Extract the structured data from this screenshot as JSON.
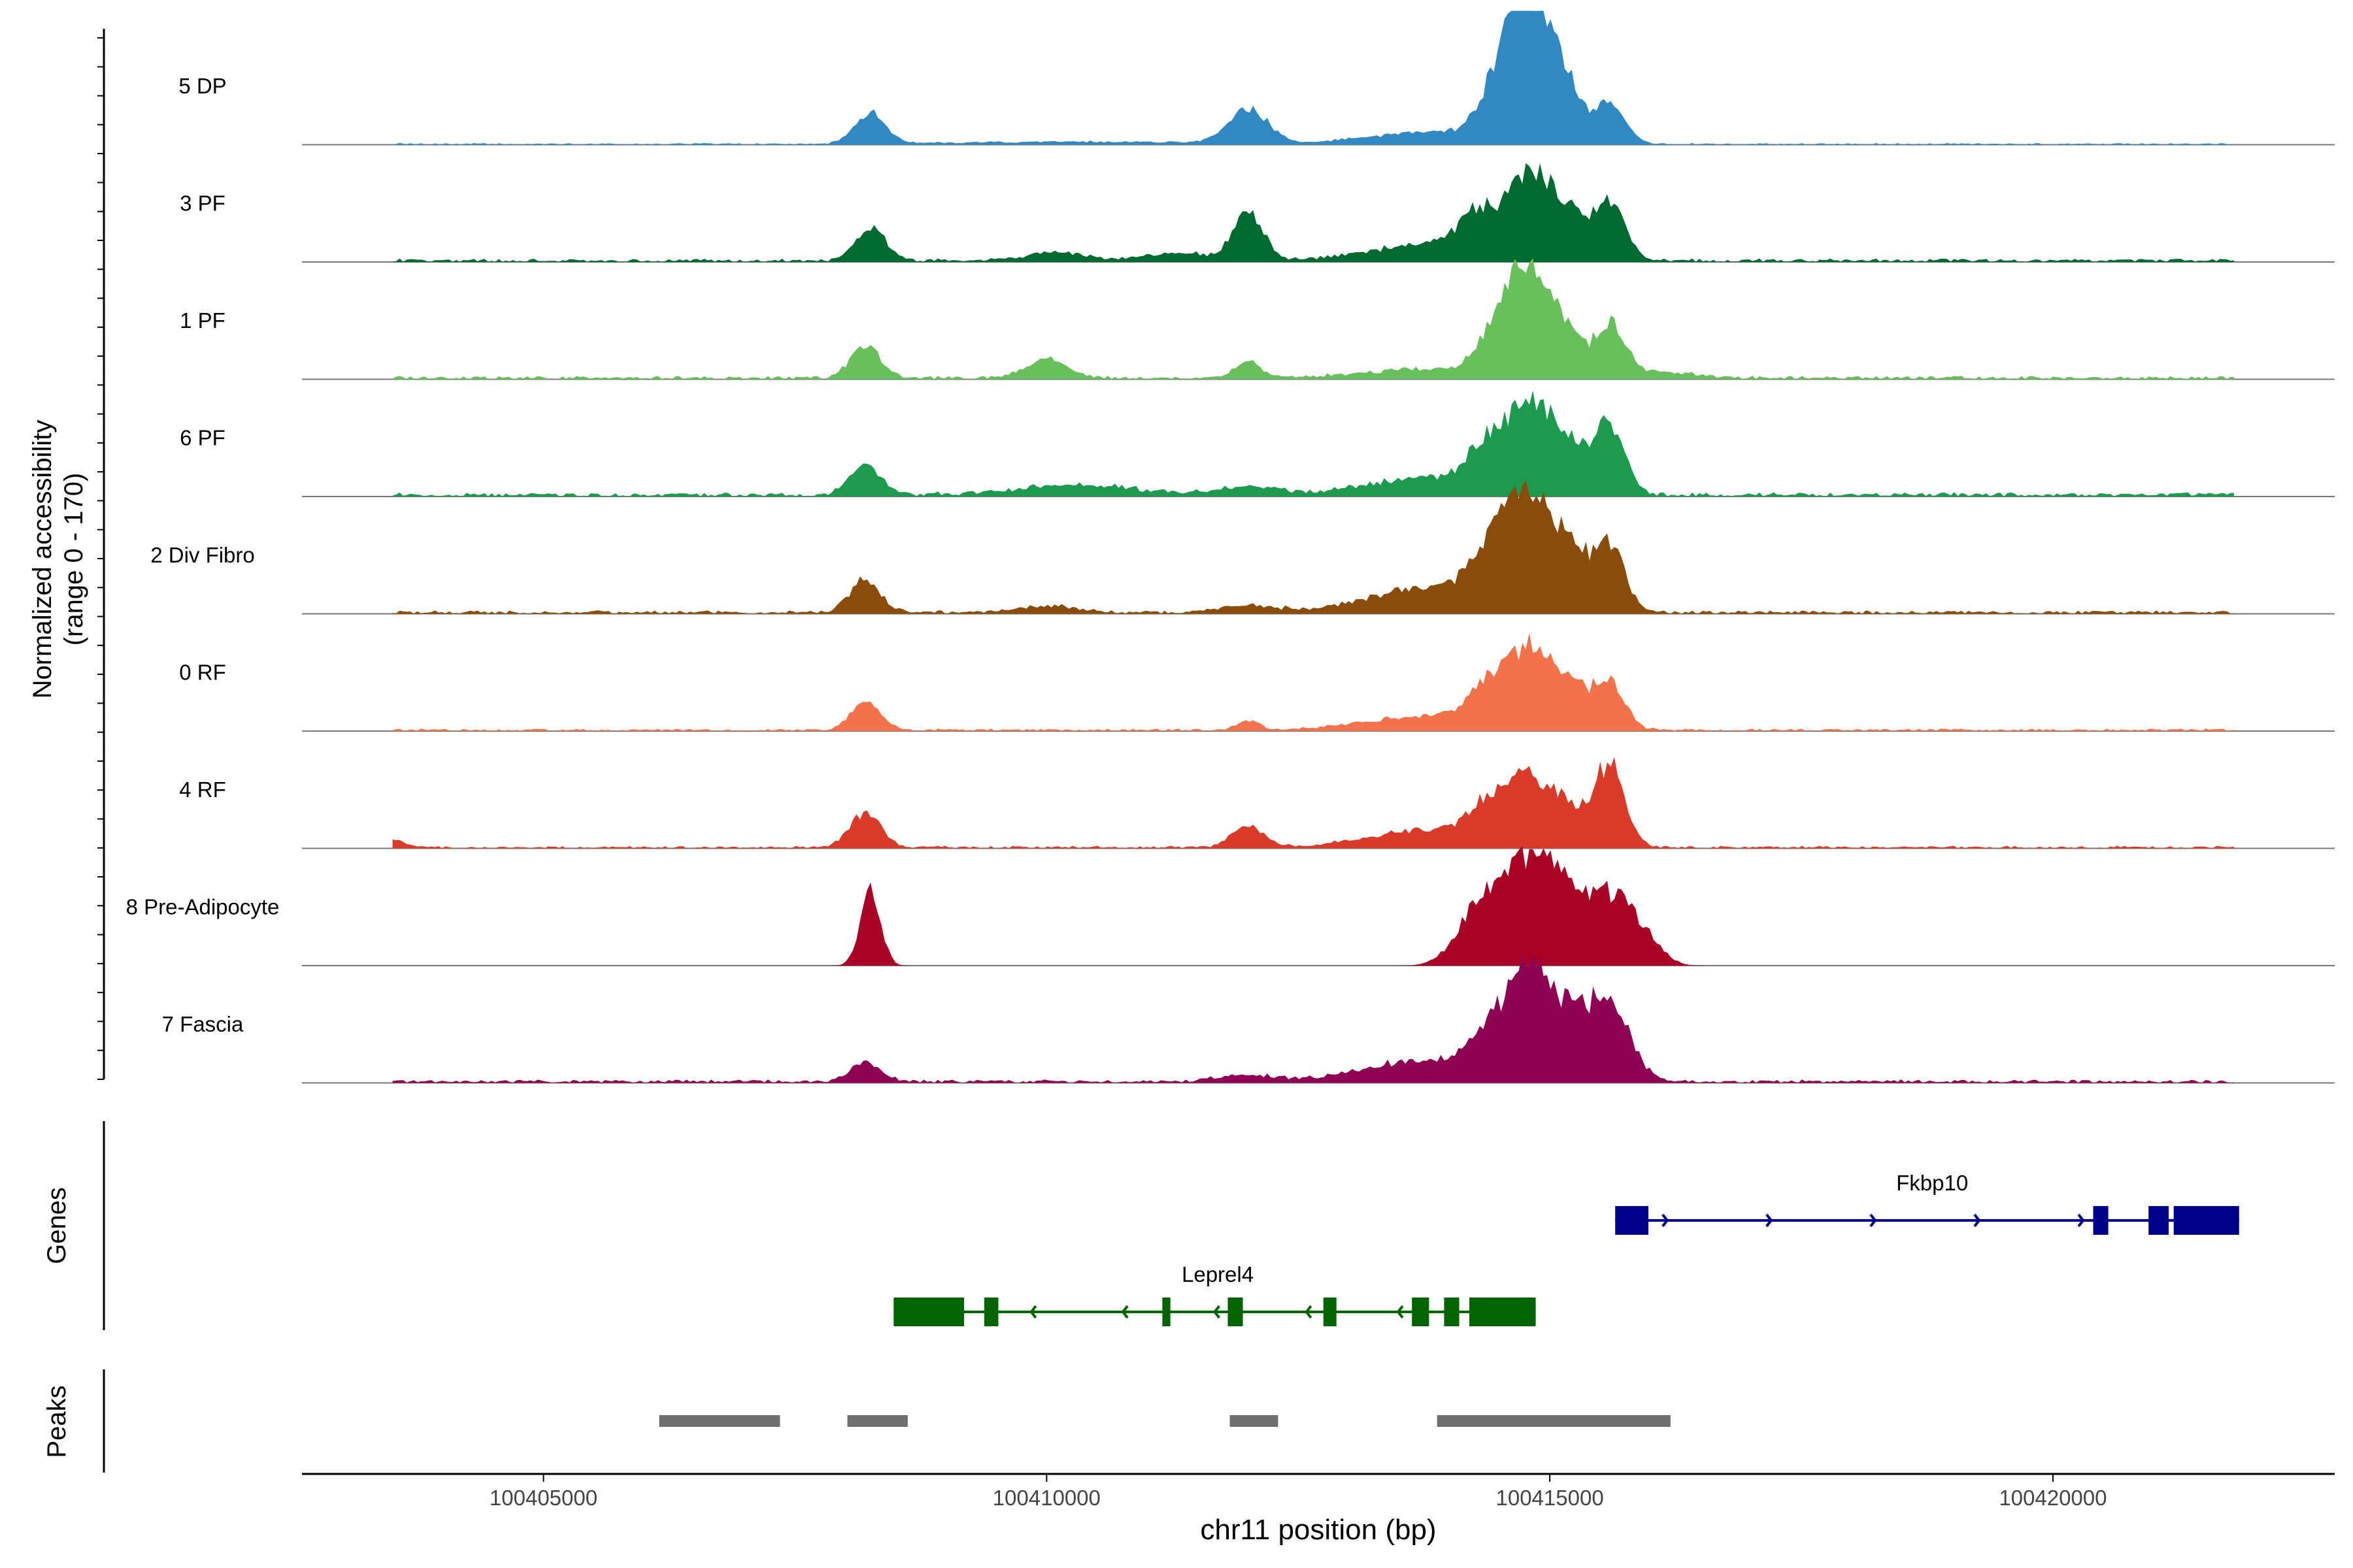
{
  "chart_data": {
    "type": "area",
    "chromosome": "chr11",
    "xlabel": "chr11 position (bp)",
    "xlim": [
      100402600,
      100422800
    ],
    "xticks": [
      100405000,
      100410000,
      100415000,
      100420000
    ],
    "xtick_labels": [
      "100405000",
      "100410000",
      "100415000",
      "100420000"
    ],
    "ylabel_line1": "Normalized accessibility",
    "ylabel_line2": "(range 0 - 170)",
    "ylim": [
      0,
      170
    ],
    "coverage_tracks": [
      {
        "name": "5 DP",
        "color": "#3288c3",
        "background": 2,
        "peaks": [
          [
            100408250,
            40,
            150
          ],
          [
            100412000,
            42,
            200
          ],
          [
            100414500,
            65,
            200
          ],
          [
            100414800,
            150,
            200
          ],
          [
            100415100,
            75,
            200
          ],
          [
            100415600,
            50,
            150
          ],
          [
            100413800,
            15,
            600
          ],
          [
            100410500,
            3,
            1200
          ]
        ]
      },
      {
        "name": "3 PF",
        "color": "#006a31",
        "background": 4,
        "peaks": [
          [
            100408250,
            42,
            150
          ],
          [
            100412000,
            60,
            150
          ],
          [
            100414300,
            50,
            200
          ],
          [
            100414800,
            100,
            200
          ],
          [
            100415200,
            55,
            200
          ],
          [
            100415600,
            68,
            150
          ],
          [
            100413800,
            20,
            600
          ],
          [
            100410100,
            10,
            300
          ],
          [
            100411300,
            10,
            300
          ]
        ]
      },
      {
        "name": "1 PF",
        "color": "#6abf5d",
        "background": 4,
        "peaks": [
          [
            100408200,
            40,
            150
          ],
          [
            100410000,
            25,
            200
          ],
          [
            100412000,
            20,
            120
          ],
          [
            100414500,
            55,
            200
          ],
          [
            100414800,
            110,
            200
          ],
          [
            100415100,
            50,
            200
          ],
          [
            100415600,
            65,
            150
          ],
          [
            100413800,
            12,
            600
          ],
          [
            100416000,
            8,
            400
          ]
        ]
      },
      {
        "name": "6 PF",
        "color": "#1b9a50",
        "background": 5,
        "peaks": [
          [
            100408200,
            40,
            150
          ],
          [
            100414400,
            55,
            200
          ],
          [
            100414800,
            98,
            200
          ],
          [
            100415200,
            60,
            200
          ],
          [
            100415600,
            85,
            150
          ],
          [
            100413800,
            22,
            600
          ],
          [
            100410300,
            12,
            600
          ],
          [
            100412000,
            10,
            300
          ]
        ]
      },
      {
        "name": "2 Div Fibro",
        "color": "#8a4c0a",
        "background": 4,
        "peaks": [
          [
            100408200,
            42,
            150
          ],
          [
            100414400,
            65,
            200
          ],
          [
            100414800,
            140,
            200
          ],
          [
            100415200,
            72,
            200
          ],
          [
            100415600,
            80,
            150
          ],
          [
            100413800,
            30,
            600
          ],
          [
            100410000,
            8,
            300
          ],
          [
            100412000,
            8,
            300
          ]
        ]
      },
      {
        "name": "0 RF",
        "color": "#f2734b",
        "background": 3,
        "peaks": [
          [
            100408200,
            35,
            150
          ],
          [
            100412000,
            12,
            100
          ],
          [
            100414400,
            50,
            200
          ],
          [
            100414800,
            90,
            200
          ],
          [
            100415200,
            50,
            200
          ],
          [
            100415600,
            58,
            150
          ],
          [
            100413800,
            18,
            600
          ]
        ]
      },
      {
        "name": "4 RF",
        "color": "#d93b2b",
        "background": 3,
        "peaks": [
          [
            100408200,
            45,
            150
          ],
          [
            100412000,
            28,
            150
          ],
          [
            100414400,
            45,
            200
          ],
          [
            100414800,
            75,
            200
          ],
          [
            100415200,
            45,
            200
          ],
          [
            100415600,
            100,
            150
          ],
          [
            100413800,
            22,
            600
          ],
          [
            100403500,
            10,
            100
          ]
        ]
      },
      {
        "name": "8 Pre-Adipocyte",
        "color": "#a90325",
        "background": 0,
        "peaks": [
          [
            100408250,
            95,
            100
          ],
          [
            100414500,
            80,
            250
          ],
          [
            100414900,
            100,
            250
          ],
          [
            100415400,
            70,
            300
          ],
          [
            100415700,
            40,
            200
          ],
          [
            100414200,
            30,
            200
          ],
          [
            100416000,
            20,
            150
          ]
        ]
      },
      {
        "name": "7 Fascia",
        "color": "#8e0153",
        "background": 4,
        "peaks": [
          [
            100408200,
            25,
            150
          ],
          [
            100414400,
            50,
            200
          ],
          [
            100414800,
            125,
            200
          ],
          [
            100415200,
            70,
            200
          ],
          [
            100415600,
            95,
            200
          ],
          [
            100413800,
            28,
            600
          ],
          [
            100412000,
            8,
            300
          ]
        ]
      }
    ],
    "genes_label": "Genes",
    "genes": [
      {
        "name": "Fkbp10",
        "color": "#00008b",
        "strand": "+",
        "start": 100415650,
        "end": 100421850,
        "exons": [
          [
            100415650,
            100415980
          ],
          [
            100420400,
            100420550
          ],
          [
            100420950,
            100421150
          ],
          [
            100421200,
            100421850
          ]
        ]
      },
      {
        "name": "Leprel4",
        "color": "#006400",
        "strand": "-",
        "start": 100408480,
        "end": 100414860,
        "exons": [
          [
            100408480,
            100409180
          ],
          [
            100409380,
            100409520
          ],
          [
            100411150,
            100411230
          ],
          [
            100411800,
            100411950
          ],
          [
            100412750,
            100412880
          ],
          [
            100413630,
            100413800
          ],
          [
            100413950,
            100414100
          ],
          [
            100414200,
            100414860
          ]
        ]
      }
    ],
    "peaks_label": "Peaks",
    "peak_regions": [
      [
        100406150,
        100407350
      ],
      [
        100408020,
        100408620
      ],
      [
        100411820,
        100412300
      ],
      [
        100413880,
        100416200
      ]
    ]
  }
}
